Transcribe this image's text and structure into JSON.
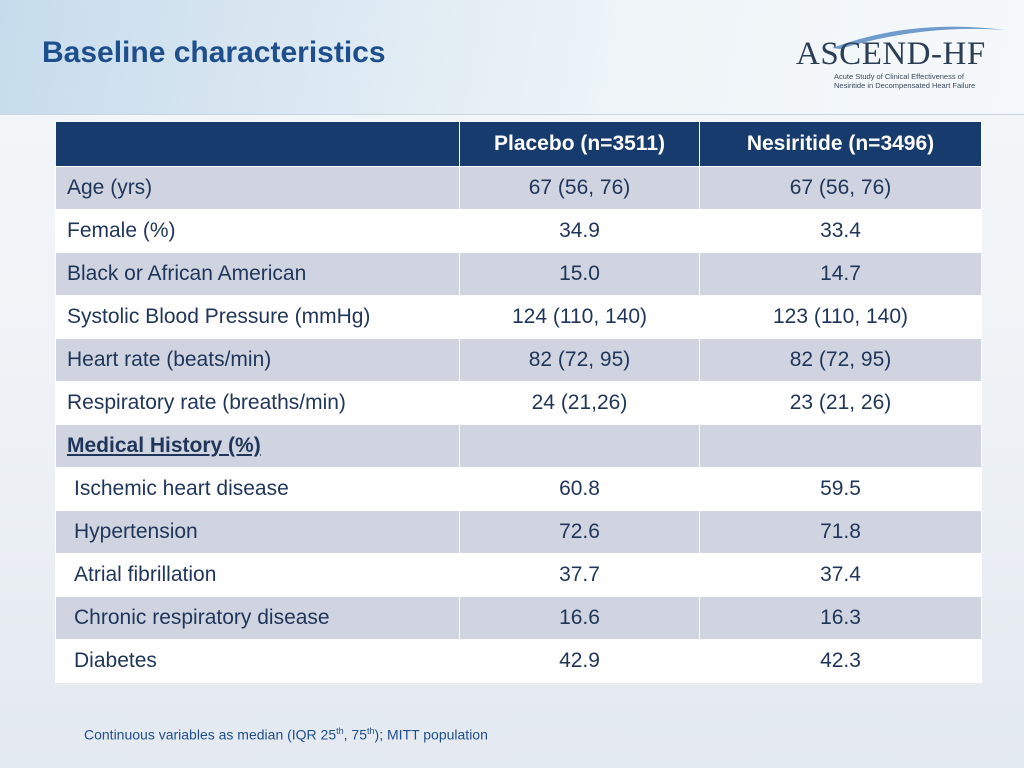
{
  "slide": {
    "title": "Baseline characteristics"
  },
  "logo": {
    "name": "ASCEND-HF",
    "subtitle_line1": "Acute Study of Clinical Effectiveness of",
    "subtitle_line2": "Nesiritide in Decompensated Heart Failure"
  },
  "table": {
    "headers": [
      "",
      "Placebo (n=3511)",
      "Nesiritide (n=3496)"
    ],
    "rows": [
      {
        "label": "Age (yrs)",
        "placebo": "67 (56, 76)",
        "nesiritide": "67 (56, 76)"
      },
      {
        "label": "Female (%)",
        "placebo": "34.9",
        "nesiritide": "33.4"
      },
      {
        "label": "Black or African American",
        "placebo": "15.0",
        "nesiritide": "14.7"
      },
      {
        "label": "Systolic Blood Pressure (mmHg)",
        "placebo": "124 (110, 140)",
        "nesiritide": "123 (110, 140)"
      },
      {
        "label": "Heart rate (beats/min)",
        "placebo": "82 (72, 95)",
        "nesiritide": "82 (72, 95)"
      },
      {
        "label": "Respiratory rate (breaths/min)",
        "placebo": "24 (21,26)",
        "nesiritide": "23 (21, 26)"
      },
      {
        "label": "Medical History (%)",
        "placebo": "",
        "nesiritide": ""
      },
      {
        "label": "Ischemic heart disease",
        "placebo": "60.8",
        "nesiritide": "59.5"
      },
      {
        "label": "Hypertension",
        "placebo": "72.6",
        "nesiritide": "71.8"
      },
      {
        "label": "Atrial fibrillation",
        "placebo": "37.7",
        "nesiritide": "37.4"
      },
      {
        "label": "Chronic respiratory disease",
        "placebo": "16.6",
        "nesiritide": "16.3"
      },
      {
        "label": "Diabetes",
        "placebo": "42.9",
        "nesiritide": "42.3"
      }
    ]
  },
  "footnote": {
    "text_before": "Continuous variables as median (IQR 25",
    "sup1": "th",
    "text_middle": ", 75",
    "sup2": "th",
    "text_after": "); MITT population"
  },
  "colors": {
    "title": "#1f4e8c",
    "header_bg": "#163b6c",
    "row_shade": "#cfd4e0",
    "row_plain": "#ffffff"
  }
}
